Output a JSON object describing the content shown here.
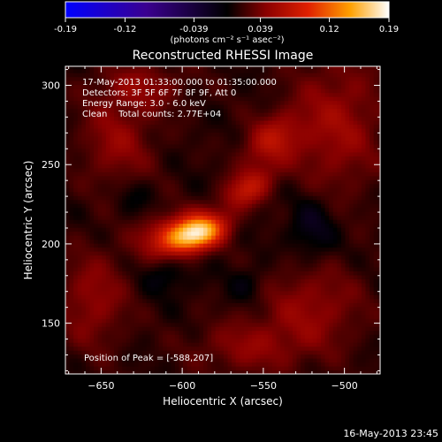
{
  "chart_data": {
    "type": "heatmap",
    "title": "Reconstructed RHESSI Image",
    "xlabel": "Heliocentric X (arcsec)",
    "ylabel": "Heliocentric Y (arcsec)",
    "xlim": [
      -672,
      -478
    ],
    "ylim": [
      118,
      312
    ],
    "xticks": [
      -650,
      -600,
      -550,
      -500
    ],
    "yticks": [
      150,
      200,
      250,
      300
    ],
    "colorbar": {
      "min": -0.19,
      "max": 0.19,
      "ticks": [
        -0.19,
        -0.12,
        -0.039,
        0.039,
        0.12,
        0.19
      ],
      "tick_labels": [
        "-0.19",
        "-0.12",
        "-0.039",
        "0.039",
        "0.12",
        "0.19"
      ],
      "unit_label": "(photons cm⁻² s⁻¹ asec⁻²)"
    },
    "info_lines": [
      "17-May-2013 01:33:00.000 to 01:35:00.000",
      "Detectors: 3F 5F 6F 7F 8F 9F, Att 0",
      "Energy Range: 3.0 - 6.0 keV",
      "Clean    Total counts: 2.77E+04"
    ],
    "peak_text": "Position of Peak = [-588,207]",
    "peak": {
      "x": -588,
      "y": 207,
      "value": 0.19
    },
    "sources": [
      {
        "x": -590,
        "y": 207,
        "sx": 12,
        "sy": 7,
        "amp": 0.13,
        "angle": 20
      },
      {
        "x": -605,
        "y": 206,
        "sx": 15,
        "sy": 9,
        "amp": 0.07,
        "angle": 15
      },
      {
        "x": -560,
        "y": 235,
        "sx": 12,
        "sy": 7,
        "amp": 0.06,
        "angle": 35
      },
      {
        "x": -545,
        "y": 265,
        "sx": 14,
        "sy": 10,
        "amp": 0.05,
        "angle": 40
      },
      {
        "x": -505,
        "y": 275,
        "sx": 20,
        "sy": 30,
        "amp": 0.04,
        "angle": 0
      },
      {
        "x": -640,
        "y": 265,
        "sx": 16,
        "sy": 20,
        "amp": 0.035,
        "angle": 0
      },
      {
        "x": -655,
        "y": 165,
        "sx": 15,
        "sy": 22,
        "amp": 0.035,
        "angle": 0
      },
      {
        "x": -520,
        "y": 160,
        "sx": 22,
        "sy": 20,
        "amp": 0.035,
        "angle": 0
      },
      {
        "x": -560,
        "y": 135,
        "sx": 24,
        "sy": 12,
        "amp": 0.03,
        "angle": 0
      },
      {
        "x": -625,
        "y": 300,
        "sx": 20,
        "sy": 10,
        "amp": 0.03,
        "angle": 0
      }
    ],
    "negative_regions": [
      {
        "x": -520,
        "y": 210,
        "sx": 10,
        "sy": 14,
        "amp": -0.03
      },
      {
        "x": -610,
        "y": 180,
        "sx": 10,
        "sy": 8,
        "amp": -0.02
      },
      {
        "x": -560,
        "y": 175,
        "sx": 8,
        "sy": 8,
        "amp": -0.02
      },
      {
        "x": -630,
        "y": 230,
        "sx": 8,
        "sy": 8,
        "amp": -0.015
      }
    ]
  },
  "footer": {
    "timestamp": "16-May-2013 23:45"
  }
}
